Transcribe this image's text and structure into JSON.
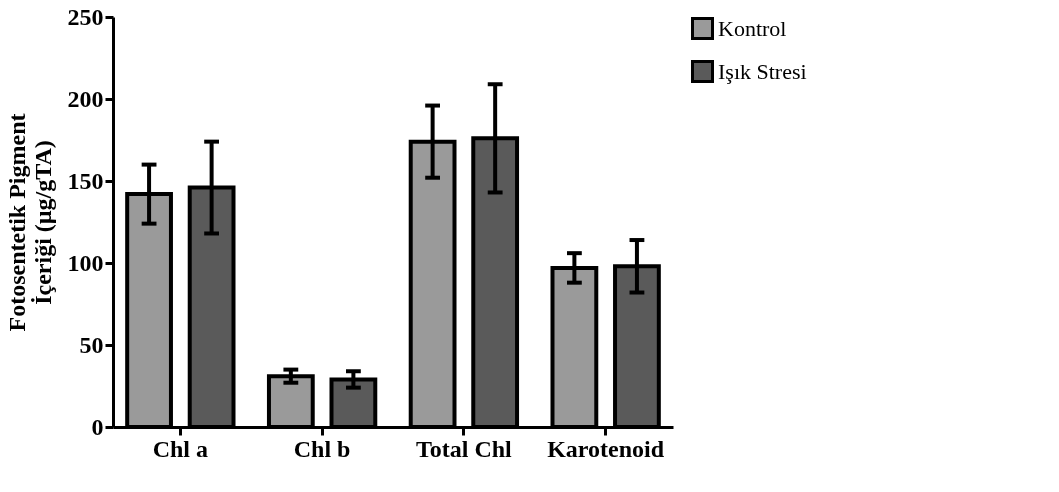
{
  "chart_data": {
    "type": "bar",
    "ylabel": "Fotosentetik Pigment\nİçeriği (µg/gTA)",
    "categories": [
      "Chl a",
      "Chl b",
      "Total Chl",
      "Karotenoid"
    ],
    "series": [
      {
        "name": "Kontrol",
        "color": "#9a9a9a",
        "values": [
          142,
          31,
          174,
          97
        ],
        "errors": [
          18,
          4,
          22,
          9
        ]
      },
      {
        "name": "Işık Stresi",
        "color": "#5a5a5a",
        "values": [
          146,
          29,
          176,
          98
        ],
        "errors": [
          28,
          5,
          33,
          16
        ]
      }
    ],
    "ylim": [
      0,
      250
    ],
    "yticks": [
      0,
      50,
      100,
      150,
      200,
      250
    ],
    "grid": false,
    "legend": "top right"
  }
}
